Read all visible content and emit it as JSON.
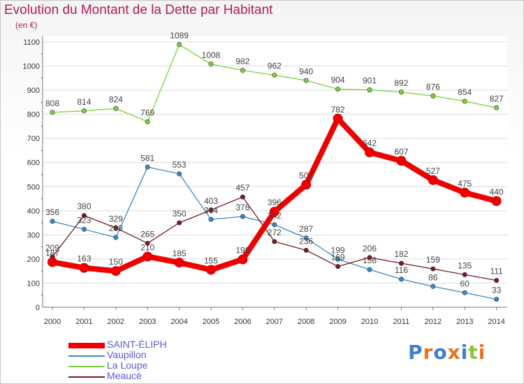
{
  "page": {
    "title": "Evolution du Montant de la Dette par Habitant",
    "subtitle": "(en €)"
  },
  "logo": {
    "text": "Proxiti",
    "letter_colors": [
      "#3a7fd0",
      "#e8741c",
      "#3a7fd0",
      "#e8741c",
      "#3a7fd0",
      "#8cc63f",
      "#e8741c"
    ]
  },
  "chart_data": {
    "type": "line",
    "title": "Evolution du Montant de la Dette par Habitant",
    "subtitle": "(en €)",
    "xlabel": "",
    "ylabel": "",
    "ylim": [
      0,
      1100
    ],
    "yticks": [
      0,
      100,
      200,
      300,
      400,
      500,
      600,
      700,
      800,
      900,
      1000,
      1100
    ],
    "grid": "horizontal",
    "legend_position": "bottom-left",
    "x": [
      "2000",
      "2001",
      "2002",
      "2003",
      "2004",
      "2005",
      "2006",
      "2007",
      "2008",
      "2009",
      "2010",
      "2011",
      "2012",
      "2013",
      "2014"
    ],
    "series": [
      {
        "name": "SAINT-ÉLIPH",
        "color": "#ee0000",
        "style": "bold",
        "values": [
          187,
          163,
          150,
          210,
          185,
          155,
          198,
          396,
          508,
          782,
          642,
          607,
          527,
          475,
          440
        ]
      },
      {
        "name": "Vaupillon",
        "color": "#3a88c8",
        "style": "thin",
        "values": [
          356,
          323,
          289,
          581,
          553,
          364,
          376,
          342,
          287,
          199,
          156,
          116,
          86,
          60,
          33
        ]
      },
      {
        "name": "La Loupe",
        "color": "#7ad13a",
        "style": "thin",
        "values": [
          808,
          814,
          824,
          769,
          1089,
          1008,
          982,
          962,
          940,
          904,
          901,
          892,
          876,
          854,
          827
        ]
      },
      {
        "name": "Meaucé",
        "color": "#7a1a22",
        "style": "thin",
        "values": [
          209,
          380,
          329,
          265,
          350,
          403,
          457,
          272,
          236,
          169,
          206,
          182,
          159,
          135,
          111
        ]
      }
    ]
  }
}
